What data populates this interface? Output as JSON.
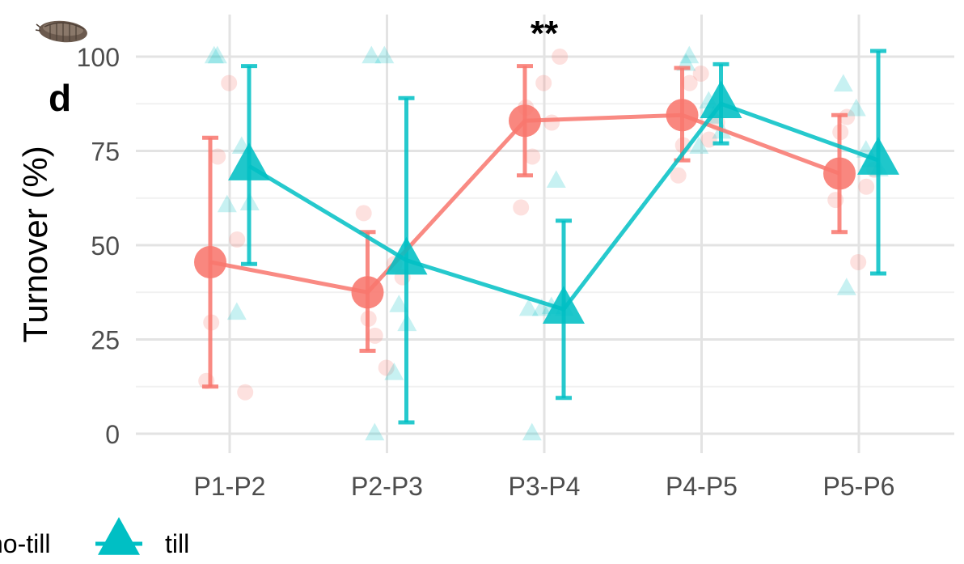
{
  "chart_data": {
    "type": "line",
    "panel_label": "d",
    "ylabel": "Turnover (%)",
    "xlabel": "",
    "categories": [
      "P1-P2",
      "P2-P3",
      "P3-P4",
      "P4-P5",
      "P5-P6"
    ],
    "ylim": [
      -5,
      108
    ],
    "yticks": [
      0,
      25,
      50,
      75,
      100
    ],
    "grid": true,
    "legend_position": "bottom",
    "significance": [
      {
        "category": "P3-P4",
        "label": "**"
      }
    ],
    "colors": {
      "no-till": "#f8766d",
      "till": "#00bfc4"
    },
    "series": [
      {
        "name": "no-till",
        "marker": "circle",
        "mean": [
          45.5,
          37.5,
          83,
          84.5,
          69
        ],
        "lower": [
          12.5,
          22,
          68.5,
          72.5,
          53.5
        ],
        "upper": [
          78.5,
          53.5,
          97.5,
          97,
          84.5
        ],
        "points": [
          [
            14,
            29.5,
            73.5,
            93,
            51.5,
            11
          ],
          [
            58.5,
            30.5,
            26,
            17.5,
            45,
            41.5
          ],
          [
            60,
            86.5,
            73.5,
            93,
            82.5,
            100
          ],
          [
            68.5,
            76.5,
            93,
            95.5,
            78,
            82.5
          ],
          [
            62,
            80,
            84,
            45.5,
            65.5,
            70
          ]
        ]
      },
      {
        "name": "till",
        "marker": "triangle",
        "mean": [
          71,
          46,
          33,
          87.5,
          72.5
        ],
        "lower": [
          45,
          3,
          9.5,
          77,
          42.5
        ],
        "upper": [
          97.5,
          89,
          56.5,
          98,
          101.5
        ],
        "points": [
          [
            100,
            100,
            60.5,
            76,
            61,
            32
          ],
          [
            0,
            100,
            100,
            34,
            29,
            16
          ],
          [
            0,
            33,
            33,
            67,
            33,
            33.5
          ],
          [
            100,
            98,
            76,
            84,
            80,
            88
          ],
          [
            38.5,
            92.5,
            86,
            72.5,
            70,
            75
          ]
        ]
      }
    ]
  }
}
